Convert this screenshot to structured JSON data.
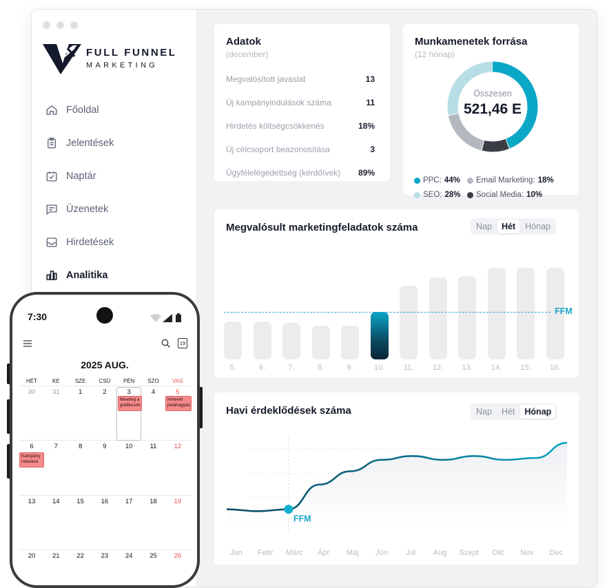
{
  "brand": {
    "line1": "FULL FUNNEL",
    "line2": "MARKETING"
  },
  "nav": [
    {
      "label": "Főoldal",
      "icon": "home-icon"
    },
    {
      "label": "Jelentések",
      "icon": "clipboard-icon"
    },
    {
      "label": "Naptár",
      "icon": "calendar-check-icon"
    },
    {
      "label": "Üzenetek",
      "icon": "message-icon"
    },
    {
      "label": "Hirdetések",
      "icon": "inbox-icon"
    },
    {
      "label": "Analitika",
      "icon": "bar-chart-icon",
      "active": true
    }
  ],
  "adatok": {
    "title": "Adatok",
    "subtitle": "(december)",
    "rows": [
      {
        "label": "Megvalósított javaslat",
        "value": "13"
      },
      {
        "label": "Új kampányindulások száma",
        "value": "11"
      },
      {
        "label": "Hirdetés költségcsökkenés",
        "value": "18%"
      },
      {
        "label": "Új célcsoport beazonosítása",
        "value": "3"
      },
      {
        "label": "Ügyfélelégedettség (kérdőívek)",
        "value": "89%"
      }
    ]
  },
  "sessions": {
    "title": "Munkamenetek forrása",
    "subtitle": "(12 hónap)",
    "center_label": "Összesen",
    "center_value": "521,46 E",
    "legend": [
      {
        "name": "PPC:",
        "value": "44%",
        "color": "#0aa7c7"
      },
      {
        "name": "Email Marketing:",
        "value": "18%",
        "color": "#b4b8bf"
      },
      {
        "name": "SEO:",
        "value": "28%",
        "color": "#b7dde6"
      },
      {
        "name": "Social Media:",
        "value": "10%",
        "color": "#3a3d43"
      }
    ]
  },
  "tasks": {
    "title": "Megvalósult marketingfeladatok száma",
    "tabs": [
      "Nap",
      "Hét",
      "Hónap"
    ],
    "active_tab": 1,
    "ref_label": "FFM"
  },
  "leads": {
    "title": "Havi érdeklődések száma",
    "tabs": [
      "Nap",
      "Hét",
      "Hónap"
    ],
    "active_tab": 2,
    "marker_label": "FFM"
  },
  "chart_data": [
    {
      "type": "bar",
      "categories": [
        "5.",
        "6.",
        "7.",
        "8.",
        "9.",
        "10.",
        "11.",
        "12.",
        "13.",
        "14.",
        "15.",
        "16."
      ],
      "values": [
        48,
        48,
        46,
        43,
        43,
        60,
        94,
        104,
        106,
        116,
        116,
        116
      ],
      "highlight_index": 5,
      "reference_line": 60,
      "reference_label": "FFM",
      "ylim": [
        0,
        140
      ]
    },
    {
      "type": "line",
      "categories": [
        "Jan",
        "Febr",
        "Márc",
        "Ápr",
        "Máj",
        "Jún",
        "Júl",
        "Aug",
        "Szept",
        "Okt",
        "Nov",
        "Dec"
      ],
      "values": [
        22,
        20,
        22,
        48,
        62,
        74,
        78,
        74,
        78,
        74,
        76,
        92
      ],
      "marker_index": 2,
      "marker_label": "FFM",
      "ylim": [
        0,
        100
      ]
    }
  ],
  "phone": {
    "time": "7:30",
    "calendar_title": "2025 AUG.",
    "weekdays": [
      "HÉT",
      "KE",
      "SZE",
      "CSÜ",
      "PÉN",
      "SZO",
      "VAS"
    ],
    "weeks": [
      [
        "30",
        "31",
        "1",
        "2",
        "3",
        "4",
        "5"
      ],
      [
        "6",
        "7",
        "8",
        "9",
        "10",
        "11",
        "12"
      ],
      [
        "13",
        "14",
        "15",
        "16",
        "17",
        "18",
        "19"
      ],
      [
        "20",
        "21",
        "22",
        "23",
        "24",
        "25",
        "26"
      ]
    ],
    "events": [
      {
        "text1": "Meeting a",
        "text2": "grafikusok"
      },
      {
        "text1": "Hírlevél",
        "text2": "jóváhagyás"
      },
      {
        "text1": "Kampány",
        "text2": "indulása"
      }
    ],
    "today_badge": "19"
  }
}
